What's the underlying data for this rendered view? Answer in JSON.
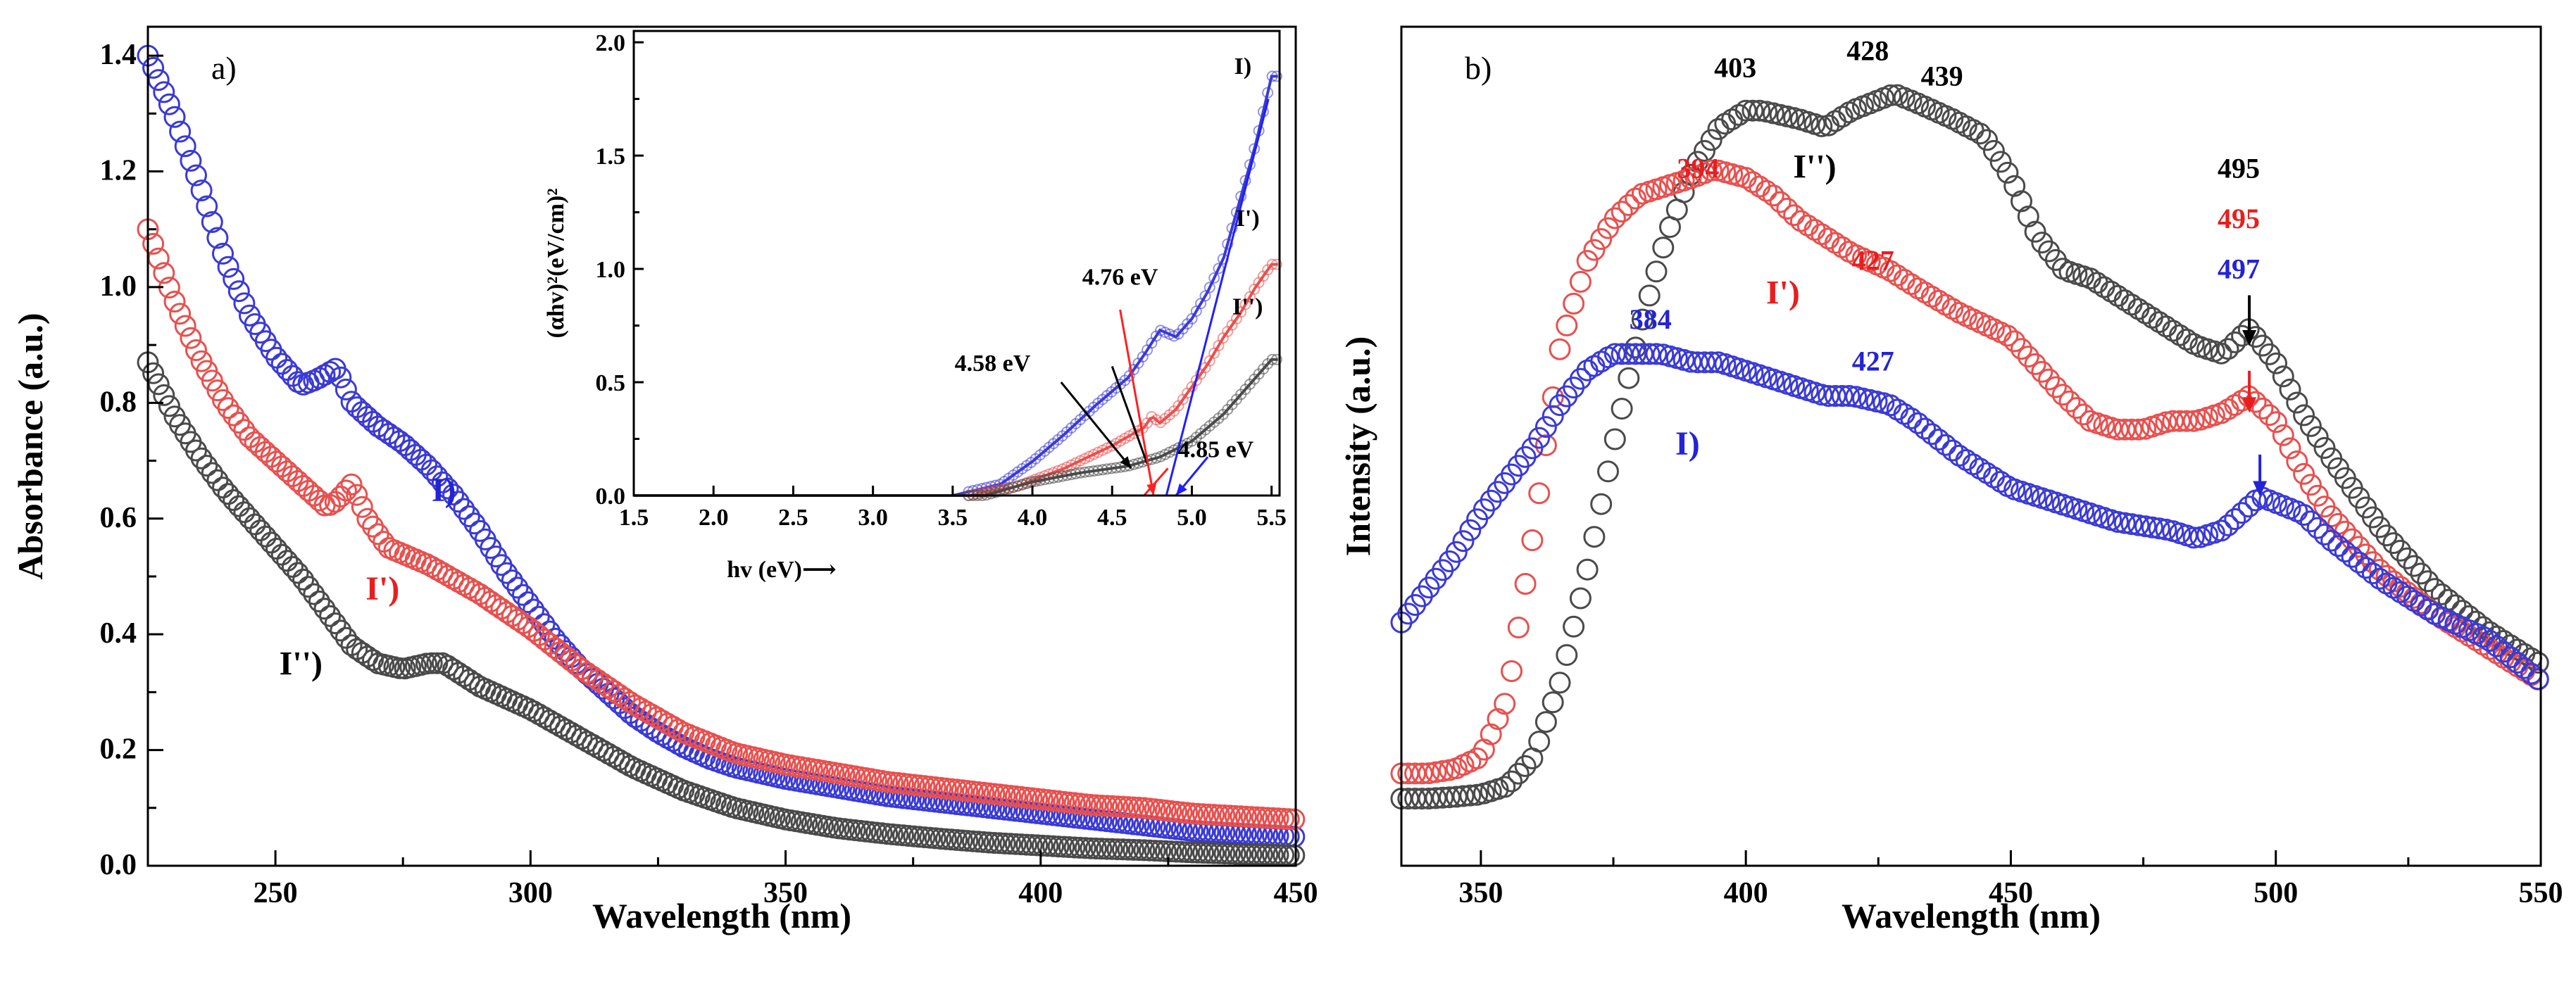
{
  "chart_data": [
    {
      "id": "a",
      "type": "scatter",
      "panel_label": "a)",
      "xlabel": "Wavelength (nm)",
      "ylabel": "Absorbance (a.u.)",
      "xlim": [
        225,
        450
      ],
      "ylim": [
        0.0,
        1.45
      ],
      "xticks": [
        250,
        300,
        350,
        400,
        450
      ],
      "yticks": [
        0.0,
        0.2,
        0.4,
        0.6,
        0.8,
        1.0,
        1.2,
        1.4
      ],
      "xtick_labels": [
        "250",
        "300",
        "350",
        "400",
        "450"
      ],
      "ytick_labels": [
        "0.0",
        "0.2",
        "0.4",
        "0.6",
        "0.8",
        "1.0",
        "1.2",
        "1.4"
      ],
      "series": [
        {
          "name": "I)",
          "color": "#3a3ad6",
          "x": [
            225,
            230,
            235,
            240,
            245,
            250,
            255,
            258,
            262,
            265,
            270,
            275,
            280,
            285,
            290,
            295,
            300,
            305,
            310,
            315,
            320,
            325,
            330,
            335,
            340,
            345,
            350,
            360,
            370,
            380,
            390,
            400,
            410,
            420,
            430,
            440,
            450
          ],
          "y": [
            1.4,
            1.3,
            1.18,
            1.05,
            0.95,
            0.88,
            0.83,
            0.84,
            0.86,
            0.8,
            0.76,
            0.73,
            0.69,
            0.64,
            0.58,
            0.51,
            0.45,
            0.39,
            0.34,
            0.3,
            0.26,
            0.23,
            0.205,
            0.185,
            0.17,
            0.16,
            0.15,
            0.135,
            0.12,
            0.11,
            0.1,
            0.09,
            0.08,
            0.07,
            0.06,
            0.055,
            0.05
          ]
        },
        {
          "name": "I')",
          "color": "#e8504e",
          "x": [
            225,
            230,
            235,
            240,
            245,
            250,
            255,
            260,
            262,
            265,
            268,
            272,
            280,
            290,
            300,
            310,
            320,
            330,
            340,
            350,
            360,
            370,
            380,
            390,
            400,
            410,
            420,
            430,
            440,
            450
          ],
          "y": [
            1.1,
            0.98,
            0.88,
            0.8,
            0.74,
            0.7,
            0.66,
            0.62,
            0.63,
            0.66,
            0.6,
            0.55,
            0.52,
            0.47,
            0.41,
            0.34,
            0.28,
            0.23,
            0.195,
            0.175,
            0.16,
            0.145,
            0.135,
            0.125,
            0.115,
            0.105,
            0.1,
            0.09,
            0.085,
            0.08
          ]
        },
        {
          "name": "I'')",
          "color": "#4a4a4a",
          "x": [
            225,
            230,
            235,
            240,
            245,
            250,
            255,
            260,
            265,
            270,
            275,
            280,
            283,
            290,
            300,
            310,
            320,
            330,
            340,
            350,
            360,
            370,
            380,
            390,
            400,
            410,
            420,
            430,
            440,
            450
          ],
          "y": [
            0.87,
            0.78,
            0.71,
            0.65,
            0.6,
            0.55,
            0.5,
            0.44,
            0.38,
            0.35,
            0.34,
            0.35,
            0.35,
            0.31,
            0.27,
            0.22,
            0.17,
            0.13,
            0.1,
            0.08,
            0.065,
            0.055,
            0.047,
            0.04,
            0.035,
            0.03,
            0.027,
            0.023,
            0.02,
            0.018
          ]
        }
      ],
      "curve_labels": [
        {
          "text": "I)",
          "color": "#2323d8",
          "x": 283,
          "y": 0.63
        },
        {
          "text": "I')",
          "color": "#e81e1e",
          "x": 271,
          "y": 0.46
        },
        {
          "text": "I'')",
          "color": "#000000",
          "x": 255,
          "y": 0.33
        }
      ],
      "inset": {
        "type": "line",
        "xlabel": "hv (eV)⟶",
        "ylabel": "(αhv)²(eV/cm)²",
        "xlim": [
          1.5,
          5.55
        ],
        "ylim": [
          0.0,
          2.05
        ],
        "xticks": [
          1.5,
          2.0,
          2.5,
          3.0,
          3.5,
          4.0,
          4.5,
          5.0,
          5.5
        ],
        "xtick_labels": [
          "1.5",
          "2.0",
          "2.5",
          "3.0",
          "3.5",
          "4.0",
          "4.5",
          "5.0",
          "5.5"
        ],
        "yticks": [
          0.0,
          0.5,
          1.0,
          1.5,
          2.0
        ],
        "ytick_labels": [
          "0.0",
          "0.5",
          "1.0",
          "1.5",
          "2.0"
        ],
        "series": [
          {
            "name": "I)",
            "color": "#3a3ad6",
            "x": [
              1.5,
              3.5,
              3.8,
              4.0,
              4.2,
              4.4,
              4.6,
              4.7,
              4.8,
              4.9,
              5.0,
              5.1,
              5.2,
              5.3,
              5.4,
              5.5
            ],
            "y": [
              0.0,
              0.0,
              0.05,
              0.15,
              0.27,
              0.4,
              0.52,
              0.62,
              0.73,
              0.7,
              0.78,
              0.9,
              1.05,
              1.3,
              1.55,
              1.85
            ]
          },
          {
            "name": "I')",
            "color": "#e8504e",
            "x": [
              1.5,
              3.6,
              3.9,
              4.2,
              4.5,
              4.7,
              4.75,
              4.8,
              4.9,
              5.0,
              5.1,
              5.2,
              5.3,
              5.4,
              5.5
            ],
            "y": [
              0.0,
              0.0,
              0.04,
              0.12,
              0.22,
              0.3,
              0.35,
              0.32,
              0.38,
              0.48,
              0.58,
              0.7,
              0.8,
              0.92,
              1.02
            ]
          },
          {
            "name": "I'')",
            "color": "#4a4a4a",
            "x": [
              1.5,
              3.7,
              4.0,
              4.3,
              4.6,
              4.8,
              5.0,
              5.1,
              5.2,
              5.3,
              5.4,
              5.5
            ],
            "y": [
              0.0,
              0.0,
              0.06,
              0.1,
              0.13,
              0.17,
              0.24,
              0.3,
              0.36,
              0.44,
              0.52,
              0.6
            ]
          }
        ],
        "tangent_lines": [
          {
            "color": "#000000",
            "x1": 4.5,
            "y1": 0.57,
            "x2": 4.72,
            "y2": 0.14
          },
          {
            "color": "#1f1fff",
            "x1": 4.84,
            "y1": 0.0,
            "x2": 5.48,
            "y2": 1.75
          },
          {
            "color": "#ff2020",
            "x1": 4.7,
            "y1": 0.0,
            "x2": 4.85,
            "y2": 0.12
          }
        ],
        "annotations": [
          {
            "text": "4.76 eV",
            "x": 4.55,
            "y": 0.93
          },
          {
            "text": "4.58 eV",
            "x": 3.75,
            "y": 0.55
          },
          {
            "text": "4.85 eV",
            "x": 5.15,
            "y": 0.17
          }
        ],
        "annotation_arrows": [
          {
            "color": "#ff2020",
            "x1": 4.55,
            "y1": 0.82,
            "x2": 4.76,
            "y2": 0.0
          },
          {
            "color": "#000000",
            "x1": 4.18,
            "y1": 0.5,
            "x2": 4.62,
            "y2": 0.12
          },
          {
            "color": "#1f1fff",
            "x1": 5.1,
            "y1": 0.17,
            "x2": 4.9,
            "y2": 0.0
          }
        ],
        "curve_labels": [
          {
            "text": "I)",
            "x": 5.32,
            "y": 1.86
          },
          {
            "text": "I')",
            "x": 5.35,
            "y": 1.19
          },
          {
            "text": "I'')",
            "x": 5.35,
            "y": 0.8
          }
        ]
      }
    },
    {
      "id": "b",
      "type": "scatter",
      "panel_label": "b)",
      "xlabel": "Wavelength (nm)",
      "ylabel": "Intensity (a.u.)",
      "xlim": [
        335,
        550
      ],
      "ylim": [
        0.0,
        1.0
      ],
      "xticks": [
        350,
        400,
        450,
        500,
        550
      ],
      "xtick_labels": [
        "350",
        "400",
        "450",
        "500",
        "550"
      ],
      "series": [
        {
          "name": "I'')",
          "color": "#4a4a4a",
          "x": [
            335,
            340,
            345,
            350,
            355,
            360,
            365,
            370,
            375,
            380,
            385,
            390,
            395,
            400,
            403,
            410,
            415,
            420,
            428,
            432,
            439,
            445,
            450,
            455,
            460,
            465,
            470,
            475,
            480,
            485,
            490,
            495,
            500,
            505,
            510,
            520,
            530,
            540,
            550
          ],
          "y": [
            0.08,
            0.08,
            0.082,
            0.085,
            0.095,
            0.13,
            0.22,
            0.35,
            0.5,
            0.64,
            0.75,
            0.83,
            0.88,
            0.9,
            0.9,
            0.89,
            0.88,
            0.9,
            0.92,
            0.91,
            0.89,
            0.87,
            0.82,
            0.75,
            0.71,
            0.7,
            0.68,
            0.66,
            0.64,
            0.62,
            0.61,
            0.64,
            0.6,
            0.54,
            0.49,
            0.4,
            0.33,
            0.28,
            0.24
          ]
        },
        {
          "name": "I')",
          "color": "#e8504e",
          "x": [
            335,
            340,
            345,
            350,
            355,
            360,
            365,
            370,
            375,
            380,
            385,
            390,
            394,
            400,
            405,
            410,
            415,
            420,
            427,
            432,
            440,
            450,
            460,
            465,
            470,
            475,
            480,
            485,
            490,
            495,
            500,
            505,
            510,
            520,
            530,
            540,
            550
          ],
          "y": [
            0.11,
            0.11,
            0.115,
            0.13,
            0.2,
            0.4,
            0.62,
            0.72,
            0.77,
            0.8,
            0.81,
            0.82,
            0.83,
            0.82,
            0.8,
            0.77,
            0.75,
            0.73,
            0.71,
            0.69,
            0.66,
            0.63,
            0.56,
            0.53,
            0.52,
            0.52,
            0.53,
            0.53,
            0.54,
            0.56,
            0.53,
            0.47,
            0.42,
            0.35,
            0.3,
            0.26,
            0.22
          ]
        },
        {
          "name": "I)",
          "color": "#3a3ad6",
          "x": [
            335,
            340,
            345,
            350,
            355,
            360,
            365,
            370,
            375,
            380,
            384,
            390,
            395,
            400,
            405,
            410,
            415,
            420,
            427,
            432,
            440,
            450,
            460,
            470,
            480,
            485,
            490,
            497,
            505,
            510,
            520,
            530,
            540,
            550
          ],
          "y": [
            0.29,
            0.33,
            0.37,
            0.42,
            0.46,
            0.5,
            0.55,
            0.59,
            0.61,
            0.61,
            0.61,
            0.6,
            0.6,
            0.59,
            0.58,
            0.57,
            0.56,
            0.56,
            0.55,
            0.53,
            0.49,
            0.45,
            0.43,
            0.41,
            0.4,
            0.39,
            0.4,
            0.44,
            0.42,
            0.39,
            0.34,
            0.3,
            0.27,
            0.22
          ]
        }
      ],
      "curve_labels": [
        {
          "text": "I'')",
          "color": "#000000",
          "x": 413,
          "y": 0.82
        },
        {
          "text": "I')",
          "color": "#e81e1e",
          "x": 407,
          "y": 0.67
        },
        {
          "text": "I)",
          "color": "#2323d8",
          "x": 389,
          "y": 0.49
        }
      ],
      "peak_labels": [
        {
          "text": "403",
          "color": "#000000",
          "x": 398,
          "y": 0.94
        },
        {
          "text": "428",
          "color": "#000000",
          "x": 423,
          "y": 0.96
        },
        {
          "text": "439",
          "color": "#000000",
          "x": 437,
          "y": 0.93
        },
        {
          "text": "495",
          "color": "#000000",
          "x": 493,
          "y": 0.82
        },
        {
          "text": "495",
          "color": "#e81e1e",
          "x": 493,
          "y": 0.76
        },
        {
          "text": "497",
          "color": "#2323d8",
          "x": 493,
          "y": 0.7
        },
        {
          "text": "394",
          "color": "#e81e1e",
          "x": 391,
          "y": 0.82
        },
        {
          "text": "427",
          "color": "#e81e1e",
          "x": 424,
          "y": 0.71
        },
        {
          "text": "384",
          "color": "#2323d8",
          "x": 382,
          "y": 0.64
        },
        {
          "text": "427",
          "color": "#2323d8",
          "x": 424,
          "y": 0.59
        }
      ],
      "peak_arrows": [
        {
          "color": "#000000",
          "x": 495,
          "y1": 0.68,
          "y2": 0.62
        },
        {
          "color": "#e81e1e",
          "x": 495,
          "y1": 0.59,
          "y2": 0.54
        },
        {
          "color": "#2323d8",
          "x": 497,
          "y1": 0.49,
          "y2": 0.44
        }
      ]
    }
  ]
}
